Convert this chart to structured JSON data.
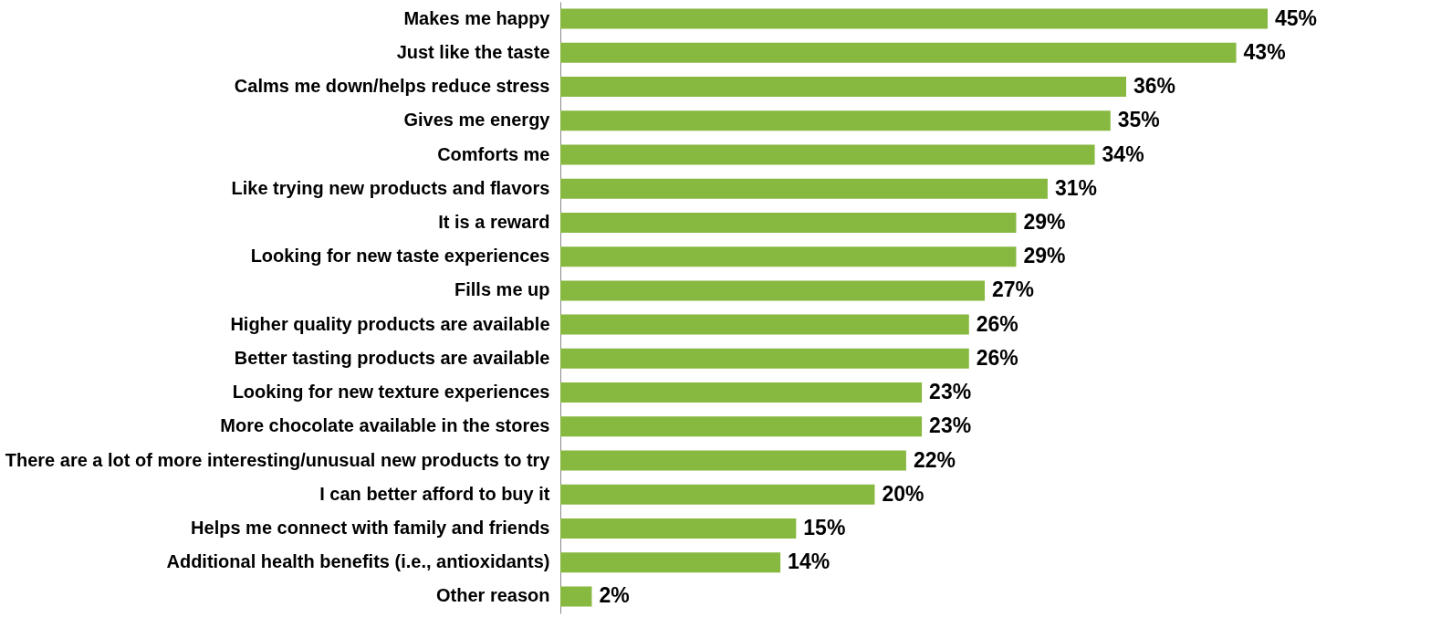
{
  "chart_data": {
    "type": "bar",
    "orientation": "horizontal",
    "categories": [
      "Makes me happy",
      "Just like the taste",
      "Calms me down/helps reduce stress",
      "Gives me energy",
      "Comforts me",
      "Like trying new products and flavors",
      "It is a reward",
      "Looking for new taste experiences",
      "Fills me up",
      "Higher quality products are available",
      "Better tasting products are available",
      "Looking for new texture experiences",
      "More chocolate available in the stores",
      "There are a lot of more interesting/unusual new products to try",
      "I can better afford to buy it",
      "Helps me connect with family and friends",
      "Additional health benefits (i.e., antioxidants)",
      "Other reason"
    ],
    "values": [
      45,
      43,
      36,
      35,
      34,
      31,
      29,
      29,
      27,
      26,
      26,
      23,
      23,
      22,
      20,
      15,
      14,
      2
    ],
    "value_labels": [
      "45%",
      "43%",
      "36%",
      "35%",
      "34%",
      "31%",
      "29%",
      "29%",
      "27%",
      "26%",
      "26%",
      "23%",
      "23%",
      "22%",
      "20%",
      "15%",
      "14%",
      "2%"
    ],
    "color": "#87b840"
  }
}
